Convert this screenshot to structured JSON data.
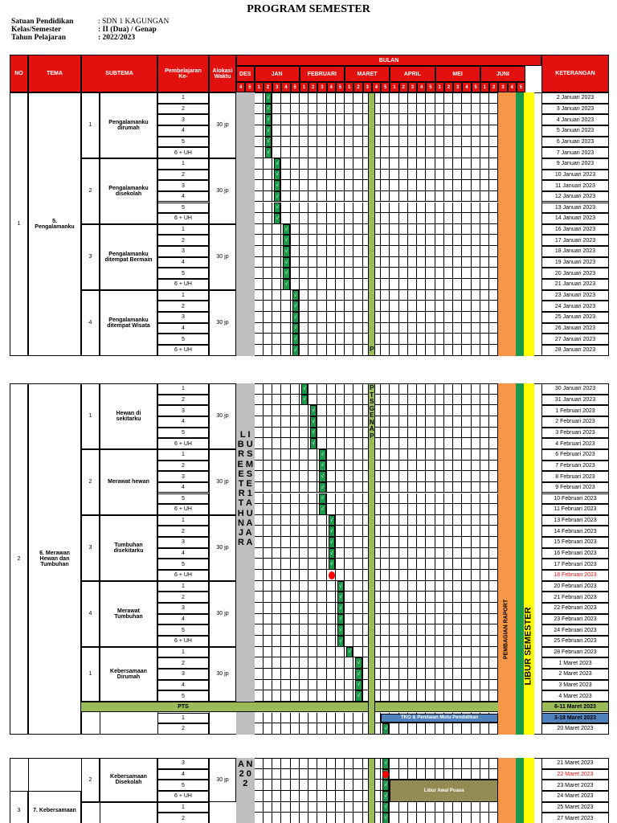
{
  "title": "PROGRAM SEMESTER",
  "info": [
    {
      "label": "Satuan Pendidikan",
      "value": ": SDN 1 KAGUNGAN"
    },
    {
      "label": "Kelas/Semester",
      "value": ": II (Dua) / Genap"
    },
    {
      "label": "Tahun Pelajaran",
      "value": ": 2022/2023"
    }
  ],
  "headers": {
    "no": "NO",
    "tema": "TEMA",
    "subtema": "SUBTEMA",
    "pembelajaran": "Pembelajaran\nKe-",
    "alokasi": "Alokasi\nWaktu",
    "bulan": "BULAN",
    "keterangan": "KETERANGAN",
    "months": [
      "DES",
      "JAN",
      "FEBRUARI",
      "MARET",
      "APRIL",
      "MEI",
      "JUNI"
    ],
    "weeks": [
      "4",
      "5",
      "1",
      "2",
      "3",
      "4",
      "5",
      "1",
      "2",
      "3",
      "4",
      "5",
      "1",
      "2",
      "3",
      "4",
      "5",
      "1",
      "2",
      "3",
      "4",
      "5",
      "1",
      "2",
      "3",
      "4",
      "5",
      "1",
      "2",
      "3",
      "4",
      "5"
    ]
  },
  "check_mark": "√",
  "lesson_labels": [
    "1",
    "2",
    "3",
    "4",
    "5",
    "6 + UH"
  ],
  "pts_label": "PTS",
  "vertical_texts": {
    "libur1": "L\nI\nB\nU\nR\n \nS\nE\nM\nE\nS\nT\nE\nR\n \n1\n \nT\nA\nH\nU\nN\n \nA\nJ\nA\nR\nA",
    "libur1b": "A\nN\n \n2\n0\n2",
    "pts_genap": "P\n \n \n \nT\nS\n \nG\nE\nN\nA\nP",
    "pembagian": "PEMBAGIAN RAPORT",
    "libur_semester": "LIBUR SEMESTER"
  },
  "bars": {
    "tko": "TKO & Penilaian Mutu Pendidikan",
    "libur_puasa": "Libur Awal Puasa"
  },
  "sections": [
    {
      "no": "1",
      "tema": "5.\nPengalamanku",
      "subtemas": [
        {
          "no": "1",
          "name": "Pengalamanku\ndirumah",
          "alokasi": "30 jp"
        },
        {
          "no": "2",
          "name": "Pengalamanku\ndisekolah",
          "alokasi": "30 jp"
        },
        {
          "no": "3",
          "name": "Pengalamanku\nditempat Bermain",
          "alokasi": "30 jp"
        },
        {
          "no": "4",
          "name": "Pengalamanku\nditempat Wisata",
          "alokasi": "30 jp"
        }
      ]
    },
    {
      "no": "2",
      "tema": "6. Merawan\nHewan dan\nTumbuhan",
      "subtemas": [
        {
          "no": "1",
          "name": "Hewan di\nsekitarku",
          "alokasi": "30 jp"
        },
        {
          "no": "2",
          "name": "Merawat hewan",
          "alokasi": "30 jp"
        },
        {
          "no": "3",
          "name": "Tumbuhan\ndisekitarku",
          "alokasi": "30 jp"
        },
        {
          "no": "4",
          "name": "Merawat\nTumbuhan",
          "alokasi": "30 jp"
        },
        {
          "no": "1",
          "name": "Kebersamaan\nDirumah",
          "alokasi": "30 jp"
        }
      ]
    },
    {
      "no": "3",
      "tema": "7. Kebersamaan",
      "subtemas": [
        {
          "no": "2",
          "name": "Kebersamaan\nDisekolah",
          "alokasi": "30 jp"
        }
      ]
    }
  ],
  "keterangan_block1": [
    "2 Januari 2023",
    "3 Januari 2023",
    "4 Januari 2023",
    "5 Januari 2023",
    "6 Januari 2023",
    "7 Januari 2023",
    "9 Januari 2023",
    "10 Januari 2023",
    "11 Januari 2023",
    "12 Januari 2023",
    "13 Januari 2023",
    "14 Januari 2023",
    "16 Januari 2023",
    "17 Januari 2023",
    "18 Januari 2023",
    "19 Januari 2023",
    "20 Januari 2023",
    "21 Januari 2023",
    "23 Januari 2023",
    "24 Januari 2023",
    "25 Januari 2023",
    "26 Januari 2023",
    "27 Januari 2023",
    "28 Januari 2023"
  ],
  "keterangan_block2": [
    "30 Januari 2023",
    "31 Januari 2023",
    "1 Februari 2023",
    "2 Februari 2023",
    "3 Februari 2023",
    "4 Februari 2023",
    "6 Februari 2023",
    "7 Februari 2023",
    "8 Februari 2023",
    "9 Februari 2023",
    "10 Februari 2023",
    "11 Februari 2023",
    "13 Februari 2023",
    "14 Februari 2023",
    "15 Februari 2023",
    "16 Februari 2023",
    "17 Februari 2023",
    "18 Februari 2023",
    "20 Februari 2023",
    "21 Februari 2023",
    "22 Februari 2023",
    "23 Februari 2023",
    "24 Februari 2023",
    "25 Februari 2023",
    "28 Februari 2023",
    "1 Maret 2023",
    "2 Maret 2023",
    "3 Maret 2023",
    "4 Maret 2023",
    "6-11 Maret 2023",
    "3-18 Maret 2023",
    "20 Maret 2023"
  ],
  "keterangan_block3": [
    "21 Maret 2023",
    "22 Maret 2023",
    "23 Maret 2023",
    "24 Maret 2023",
    "25 Maret 2023",
    "27 Maret 2023"
  ],
  "colors": {
    "header_red": "#e31010",
    "check_green": "#1a9a48",
    "libur_grey": "#bfbfbf",
    "pts_green": "#9bbb59",
    "orange": "#f79646",
    "yellow": "#ffff00",
    "tko_blue": "#4f81bd",
    "puasa_olive": "#948a54",
    "pts_row": "#9bbb59",
    "red_dot": "#ff0000"
  }
}
